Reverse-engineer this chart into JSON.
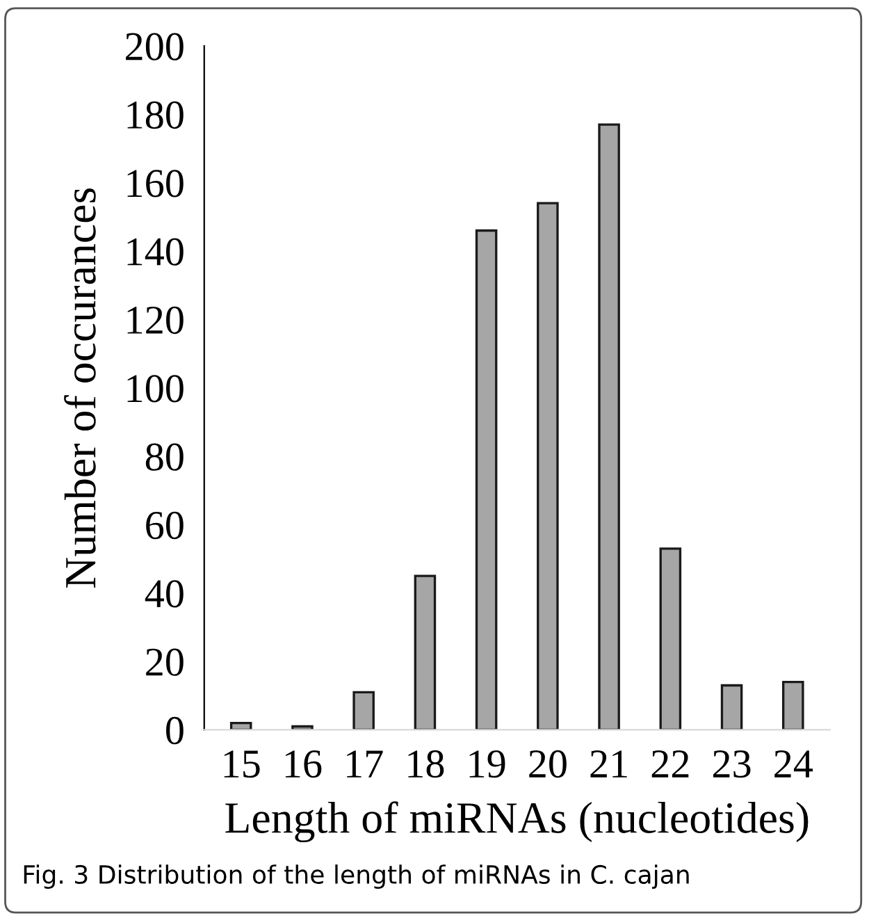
{
  "chart_data": {
    "type": "bar",
    "xlabel": "Length of miRNAs (nucleotides)",
    "ylabel": "Number of occurances",
    "categories": [
      "15",
      "16",
      "17",
      "18",
      "19",
      "20",
      "21",
      "22",
      "23",
      "24"
    ],
    "values": [
      2,
      1,
      11,
      45,
      146,
      154,
      177,
      53,
      13,
      14
    ],
    "color": "#a6a6a6",
    "ylim": [
      0,
      200
    ],
    "yticks": [
      0,
      20,
      40,
      60,
      80,
      100,
      120,
      140,
      160,
      180,
      200
    ],
    "grid": false,
    "legend": false,
    "annotations": [
      "Fig. 3 Distribution of the length of miRNAs in C. cajan"
    ]
  }
}
